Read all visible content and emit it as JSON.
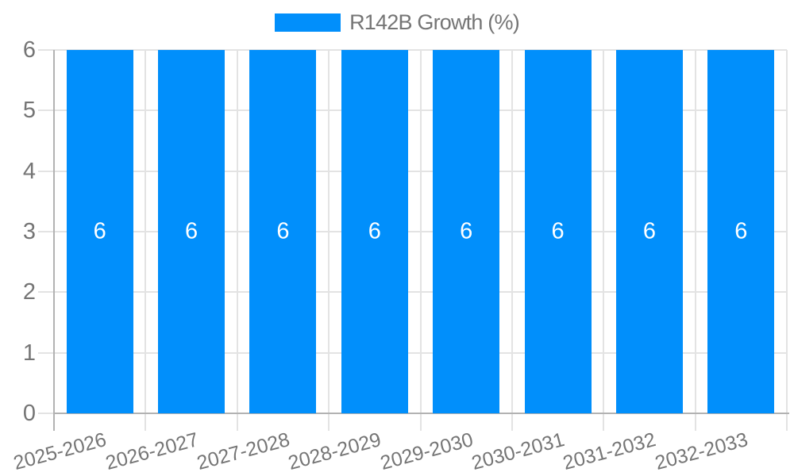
{
  "legend": {
    "series_label": "R142B Growth (%)"
  },
  "colors": {
    "bar": "#018FFB",
    "grid_line": "#e3e3e3",
    "axis_line": "#b2b2b2",
    "axis_text": "#757575",
    "bar_label_text": "#ffffff",
    "background": "#ffffff"
  },
  "chart_data": {
    "type": "bar",
    "title": "R142B Growth (%)",
    "xlabel": "",
    "ylabel": "",
    "categories": [
      "2025-2026",
      "2026-2027",
      "2027-2028",
      "2028-2029",
      "2029-2030",
      "2030-2031",
      "2031-2032",
      "2032-2033"
    ],
    "series": [
      {
        "name": "R142B Growth (%)",
        "values": [
          6,
          6,
          6,
          6,
          6,
          6,
          6,
          6
        ]
      }
    ],
    "data_labels": [
      "6",
      "6",
      "6",
      "6",
      "6",
      "6",
      "6",
      "6"
    ],
    "ylim": [
      0,
      6
    ],
    "yticks": [
      0,
      1,
      2,
      3,
      4,
      5,
      6
    ],
    "grid": true,
    "legend_position": "top-center",
    "x_label_rotation_deg": -15
  }
}
